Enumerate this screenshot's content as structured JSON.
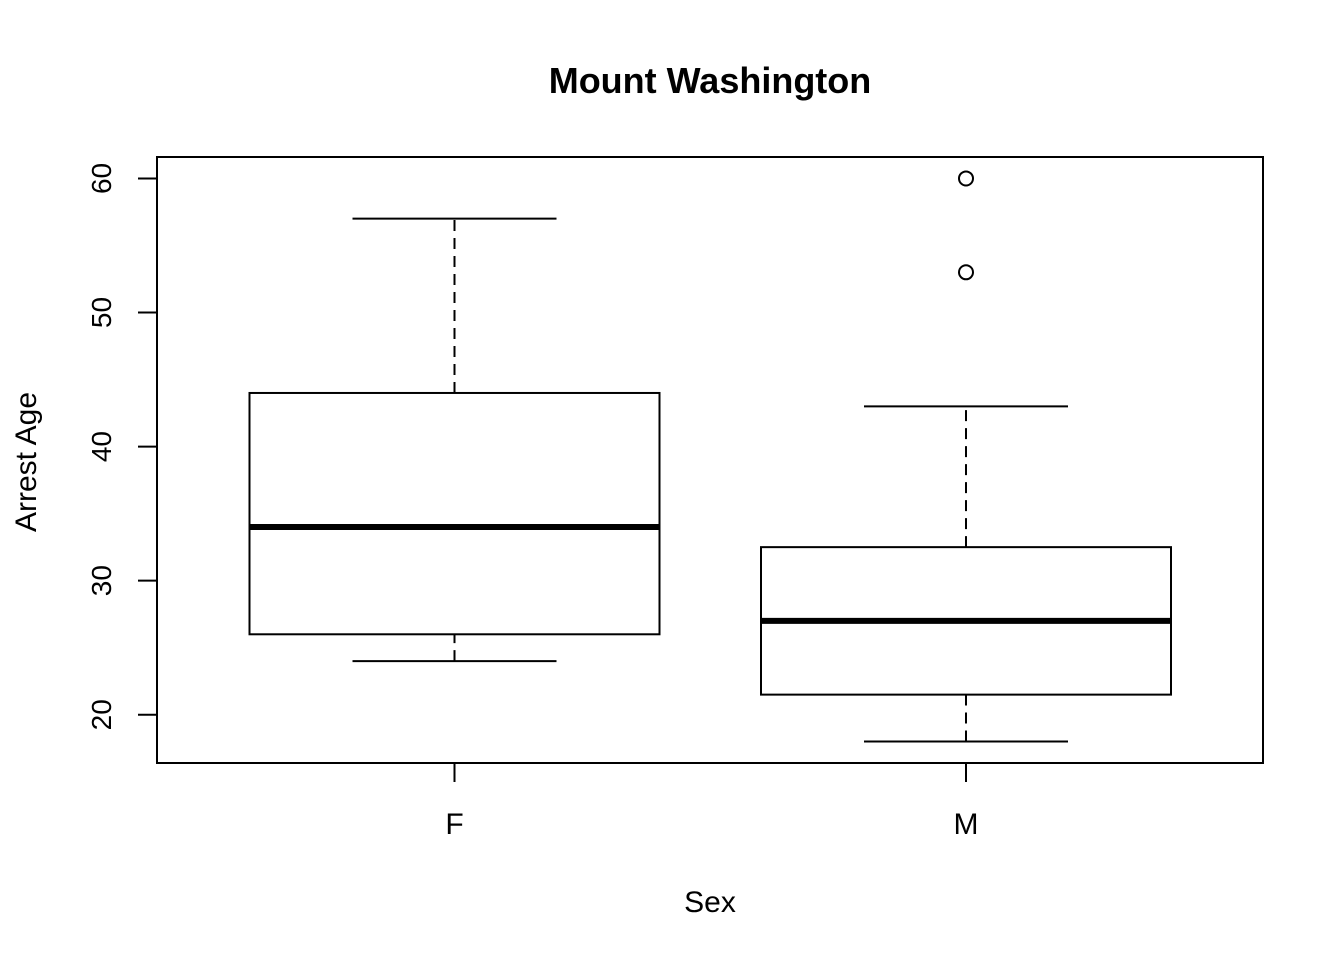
{
  "chart_data": {
    "type": "boxplot",
    "title": "Mount Washington",
    "xlabel": "Sex",
    "ylabel": "Arrest Age",
    "categories": [
      "F",
      "M"
    ],
    "ylim": [
      16.4,
      61.6
    ],
    "yticks": [
      20,
      30,
      40,
      50,
      60
    ],
    "ytick_labels": [
      "20",
      "30",
      "40",
      "50",
      "60"
    ],
    "boxes": [
      {
        "category": "F",
        "whisker_low": 24,
        "q1": 26,
        "median": 34,
        "q3": 44,
        "whisker_high": 57,
        "outliers": []
      },
      {
        "category": "M",
        "whisker_low": 18,
        "q1": 21.5,
        "median": 27,
        "q3": 32.5,
        "whisker_high": 43,
        "outliers": [
          53,
          60
        ]
      }
    ],
    "grid": false,
    "colors": {
      "stroke": "#000000",
      "fill": "#ffffff"
    }
  }
}
